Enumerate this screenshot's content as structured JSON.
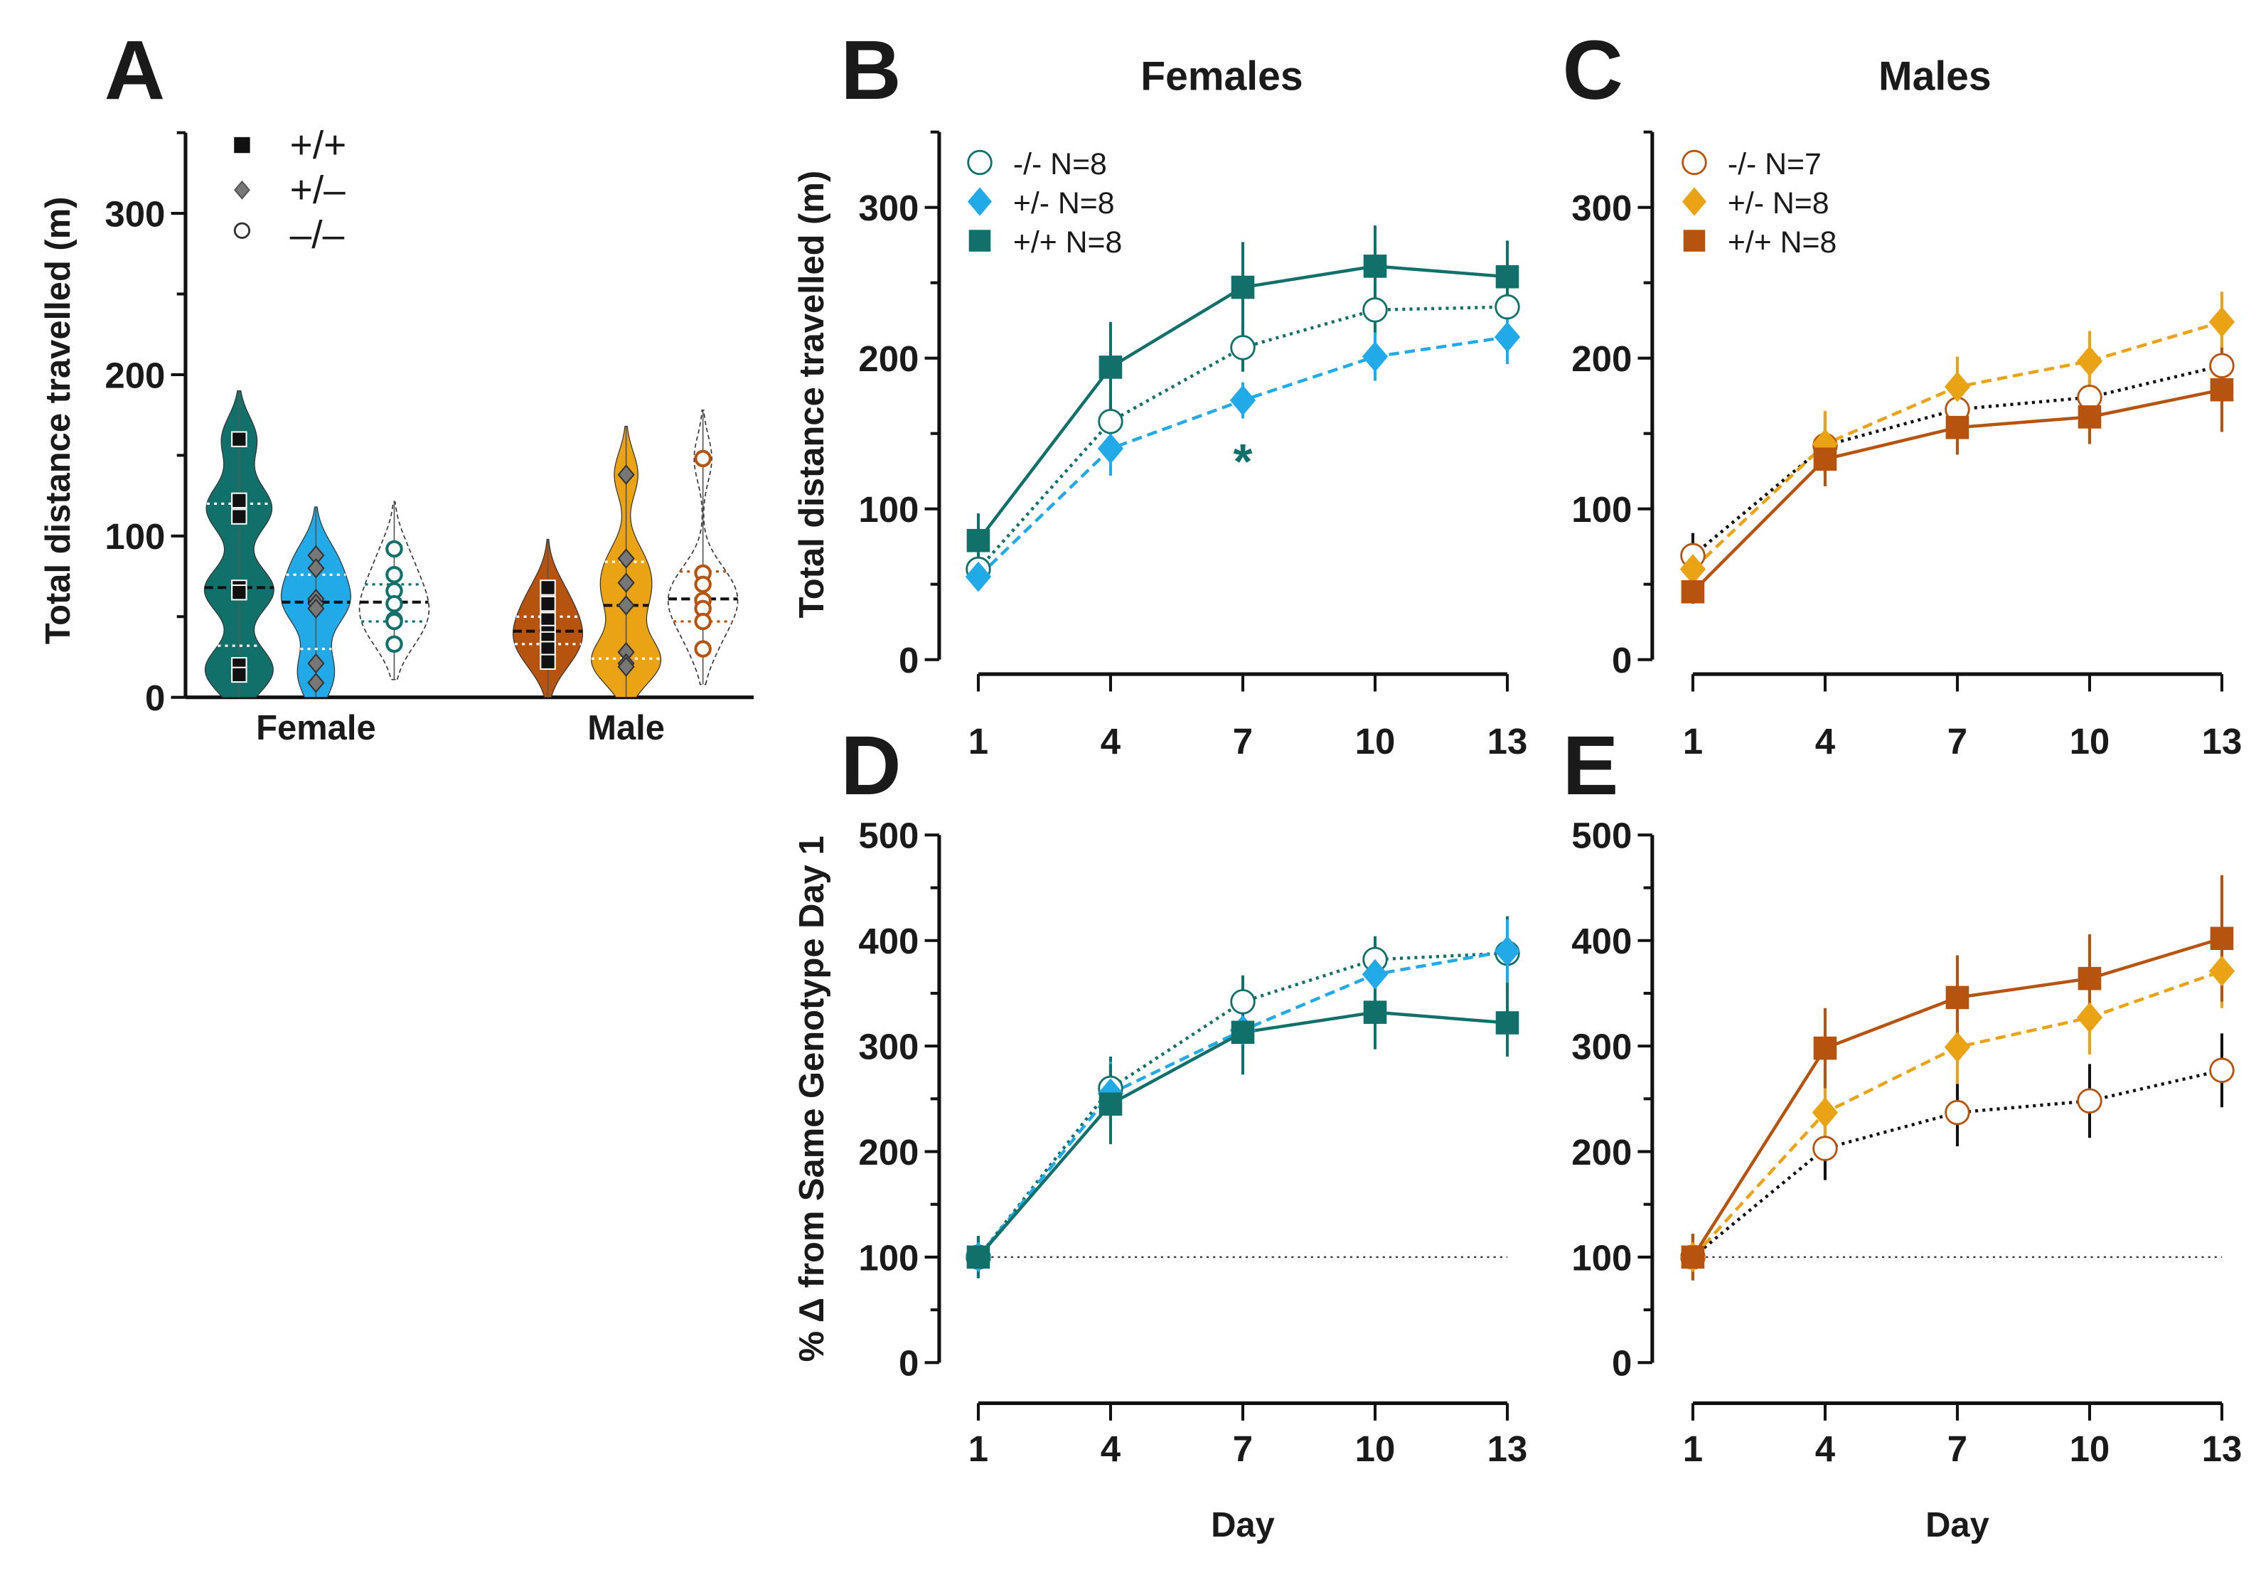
{
  "colors": {
    "teal": "#12706b",
    "blue": "#22aae8",
    "rust": "#b5530f",
    "gold": "#e9a315",
    "gray": "#777777",
    "black": "#1a1a1a"
  },
  "chart_data": [
    {
      "panel": "A",
      "type": "violin",
      "ylabel": "Total distance travelled (m)",
      "ylim": [
        0,
        350
      ],
      "yticks": [
        "0",
        "100",
        "200",
        "300"
      ],
      "categories": [
        "Female",
        "Male"
      ],
      "legend": [
        "+/+",
        "+/–",
        "–/–"
      ],
      "groups": [
        {
          "sex": "Female",
          "genotype": "+/+",
          "points": [
            160,
            122,
            112,
            68,
            65,
            20,
            14
          ],
          "median": 68,
          "q1": 32,
          "q3": 120
        },
        {
          "sex": "Female",
          "genotype": "+/-",
          "points": [
            88,
            80,
            61,
            58,
            55,
            21,
            9
          ],
          "median": 59,
          "q1": 30,
          "q3": 76
        },
        {
          "sex": "Female",
          "genotype": "-/-",
          "points": [
            92,
            76,
            66,
            58,
            48,
            47,
            33
          ],
          "median": 59,
          "q1": 47,
          "q3": 70
        },
        {
          "sex": "Male",
          "genotype": "+/+",
          "points": [
            68,
            58,
            48,
            40,
            36,
            30,
            22
          ],
          "median": 41,
          "q1": 33,
          "q3": 50
        },
        {
          "sex": "Male",
          "genotype": "+/-",
          "points": [
            138,
            86,
            71,
            57,
            28,
            21,
            19
          ],
          "median": 57,
          "q1": 24,
          "q3": 84
        },
        {
          "sex": "Male",
          "genotype": "-/-",
          "points": [
            148,
            77,
            70,
            60,
            55,
            47,
            30
          ],
          "median": 61,
          "q1": 47,
          "q3": 78
        }
      ]
    },
    {
      "panel": "B",
      "type": "line",
      "title": "Females",
      "ylabel": "Total distance travelled (m)",
      "ylim": [
        0,
        350
      ],
      "yticks": [
        "0",
        "100",
        "200",
        "300"
      ],
      "x": [
        1,
        4,
        7,
        10,
        13
      ],
      "xticks": [
        "1",
        "4",
        "7",
        "10",
        "13"
      ],
      "annotation": "*",
      "series": [
        {
          "name": "-/- N=8",
          "values": [
            60,
            158,
            207,
            232,
            234
          ],
          "errors": [
            8,
            20,
            16,
            16,
            10
          ]
        },
        {
          "name": "+/- N=8",
          "values": [
            55,
            140,
            172,
            201,
            214
          ],
          "errors": [
            8,
            18,
            12,
            16,
            18
          ]
        },
        {
          "name": "+/+ N=8",
          "values": [
            79,
            194,
            247,
            261,
            254
          ],
          "errors": [
            18,
            30,
            30,
            27,
            24
          ]
        }
      ]
    },
    {
      "panel": "C",
      "type": "line",
      "title": "Males",
      "ylim": [
        0,
        350
      ],
      "yticks": [
        "0",
        "100",
        "200",
        "300"
      ],
      "x": [
        1,
        4,
        7,
        10,
        13
      ],
      "xticks": [
        "1",
        "4",
        "7",
        "10",
        "13"
      ],
      "series": [
        {
          "name": "-/- N=7",
          "values": [
            69,
            142,
            166,
            174,
            195
          ],
          "errors": [
            15,
            20,
            18,
            20,
            22
          ]
        },
        {
          "name": "+/- N=8",
          "values": [
            60,
            143,
            181,
            198,
            224
          ],
          "errors": [
            12,
            22,
            20,
            20,
            20
          ]
        },
        {
          "name": "+/+ N=8",
          "values": [
            45,
            133,
            154,
            161,
            179
          ],
          "errors": [
            8,
            18,
            18,
            18,
            28
          ]
        }
      ]
    },
    {
      "panel": "D",
      "type": "line",
      "ylabel": "% Δ from Same Genotype Day 1",
      "xlabel": "Day",
      "ylim": [
        0,
        500
      ],
      "yticks": [
        "0",
        "100",
        "200",
        "300",
        "400",
        "500"
      ],
      "x": [
        1,
        4,
        7,
        10,
        13
      ],
      "xticks": [
        "1",
        "4",
        "7",
        "10",
        "13"
      ],
      "reference_line": 100,
      "series": [
        {
          "name": "-/-",
          "values": [
            100,
            260,
            342,
            382,
            388
          ],
          "errors": [
            20,
            30,
            25,
            22,
            35
          ]
        },
        {
          "name": "+/-",
          "values": [
            100,
            255,
            315,
            368,
            390
          ],
          "errors": [
            20,
            30,
            25,
            25,
            30
          ]
        },
        {
          "name": "+/+",
          "values": [
            100,
            245,
            313,
            332,
            322
          ],
          "errors": [
            20,
            38,
            40,
            35,
            32
          ]
        }
      ]
    },
    {
      "panel": "E",
      "type": "line",
      "xlabel": "Day",
      "ylim": [
        0,
        500
      ],
      "yticks": [
        "0",
        "100",
        "200",
        "300",
        "400",
        "500"
      ],
      "x": [
        1,
        4,
        7,
        10,
        13
      ],
      "xticks": [
        "1",
        "4",
        "7",
        "10",
        "13"
      ],
      "reference_line": 100,
      "series": [
        {
          "name": "-/-",
          "values": [
            100,
            203,
            237,
            248,
            277
          ],
          "errors": [
            22,
            30,
            32,
            35,
            35
          ]
        },
        {
          "name": "+/-",
          "values": [
            100,
            237,
            299,
            327,
            371
          ],
          "errors": [
            20,
            38,
            35,
            35,
            35
          ]
        },
        {
          "name": "+/+",
          "values": [
            100,
            298,
            346,
            364,
            402
          ],
          "errors": [
            22,
            38,
            40,
            42,
            60
          ]
        }
      ]
    }
  ]
}
